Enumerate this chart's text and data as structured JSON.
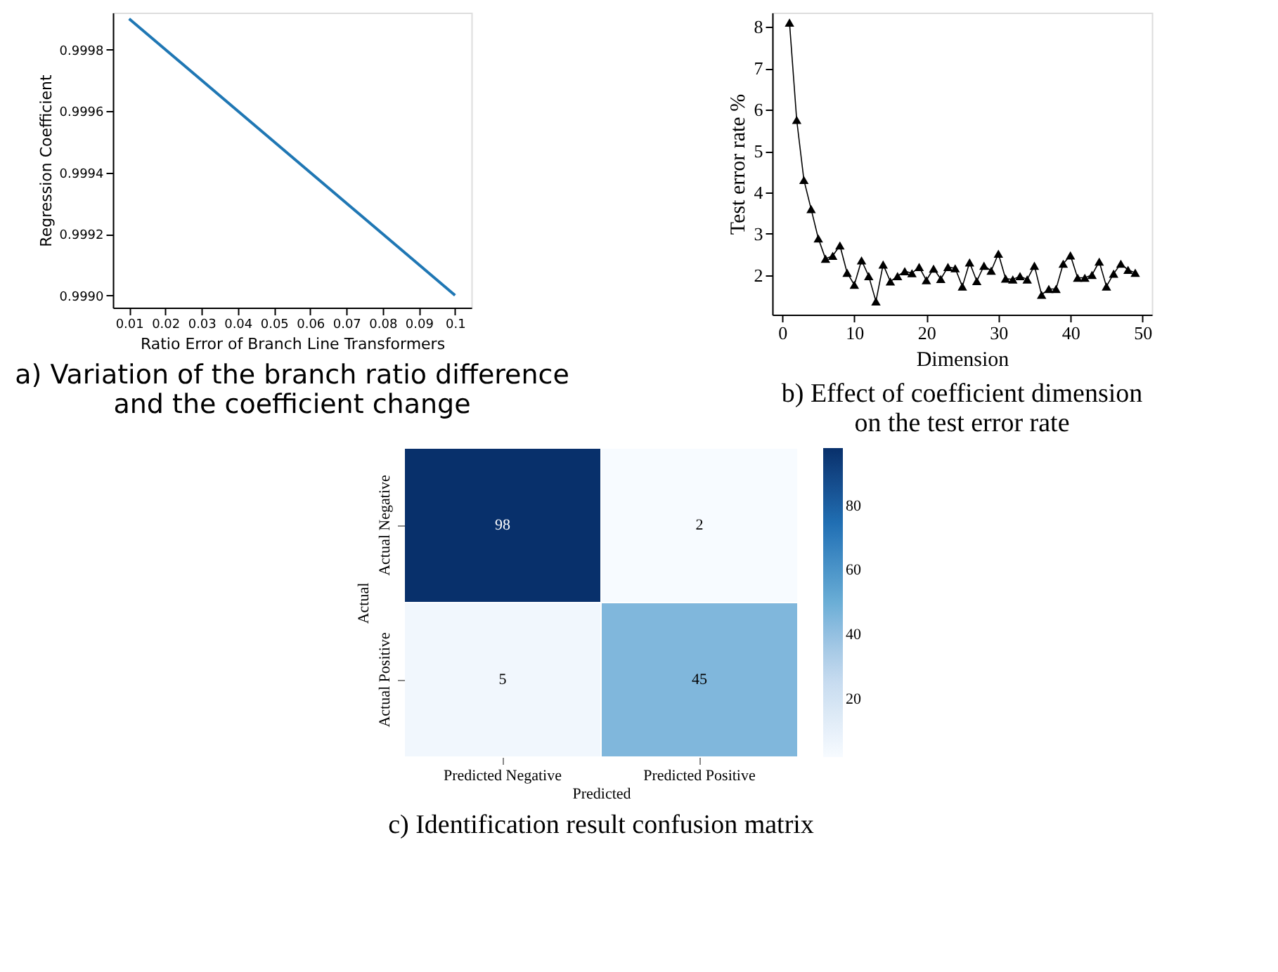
{
  "chart_data": [
    {
      "type": "line",
      "title": "a) Variation of the branch ratio difference\nand the coefficient change",
      "xlabel": "Ratio Error of Branch Line Transformers",
      "ylabel": "Regression Coefficient",
      "x": [
        0.01,
        0.1
      ],
      "series": [
        {
          "color": "#1f77b4",
          "values": [
            0.9999,
            0.999
          ]
        }
      ],
      "xlim": [
        0.0055,
        0.1045
      ],
      "xticks": [
        0.01,
        0.02,
        0.03,
        0.04,
        0.05,
        0.06,
        0.07,
        0.08,
        0.09,
        {
          "value": 0.1,
          "label": "0.1"
        }
      ],
      "ylim": [
        0.99896,
        0.99992
      ],
      "yticks": [
        {
          "value": 0.999,
          "label": "0.9990"
        },
        {
          "value": 0.9992,
          "label": "0.9992"
        },
        {
          "value": 0.9994,
          "label": "0.9994"
        },
        {
          "value": 0.9996,
          "label": "0.9996"
        },
        {
          "value": 0.9998,
          "label": "0.9998"
        }
      ],
      "line_style": "solid",
      "grid": false,
      "legend": false
    },
    {
      "type": "line",
      "title": "b) Effect of coefficient dimension\non the test error rate",
      "xlabel": "Dimension",
      "ylabel": "Test error rate %",
      "x": [
        1,
        2,
        3,
        4,
        5,
        6,
        7,
        8,
        9,
        10,
        11,
        12,
        13,
        14,
        15,
        16,
        17,
        18,
        19,
        20,
        21,
        22,
        23,
        24,
        25,
        26,
        27,
        28,
        29,
        30,
        31,
        32,
        33,
        34,
        35,
        36,
        37,
        38,
        39,
        40,
        41,
        42,
        43,
        44,
        45,
        46,
        47,
        48,
        49
      ],
      "series": [
        {
          "color": "#000000",
          "values": [
            8.1,
            5.75,
            4.3,
            3.6,
            2.89,
            2.4,
            2.47,
            2.72,
            2.06,
            1.77,
            2.36,
            1.98,
            1.37,
            2.26,
            1.85,
            1.98,
            2.1,
            2.05,
            2.2,
            1.88,
            2.16,
            1.91,
            2.2,
            2.17,
            1.73,
            2.31,
            1.86,
            2.23,
            2.11,
            2.52,
            1.92,
            1.9,
            1.98,
            1.9,
            2.23,
            1.53,
            1.67,
            1.67,
            2.28,
            2.48,
            1.94,
            1.94,
            2.01,
            2.33,
            1.73,
            2.04,
            2.28,
            2.13,
            2.06
          ]
        }
      ],
      "xlim": [
        -1.4,
        51.3
      ],
      "xticks": [
        0,
        10,
        20,
        30,
        40,
        50
      ],
      "ylim": [
        1.05,
        8.34
      ],
      "yticks": [
        2,
        3,
        4,
        5,
        6,
        7,
        8
      ],
      "marker": "triangle",
      "line_style": "solid",
      "grid": false,
      "legend": false
    },
    {
      "type": "heatmap",
      "title": "c) Identification result confusion matrix",
      "xlabel": "Predicted",
      "ylabel": "Actual",
      "categories": [
        "Predicted Negative",
        "Predicted Positive"
      ],
      "y_categories": [
        "Actual Negative",
        "Actual Positive"
      ],
      "cells": [
        [
          98,
          2
        ],
        [
          5,
          45
        ]
      ],
      "clim": [
        2,
        98
      ],
      "cticks": [
        20,
        40,
        60,
        80
      ],
      "data_labels": true
    }
  ]
}
